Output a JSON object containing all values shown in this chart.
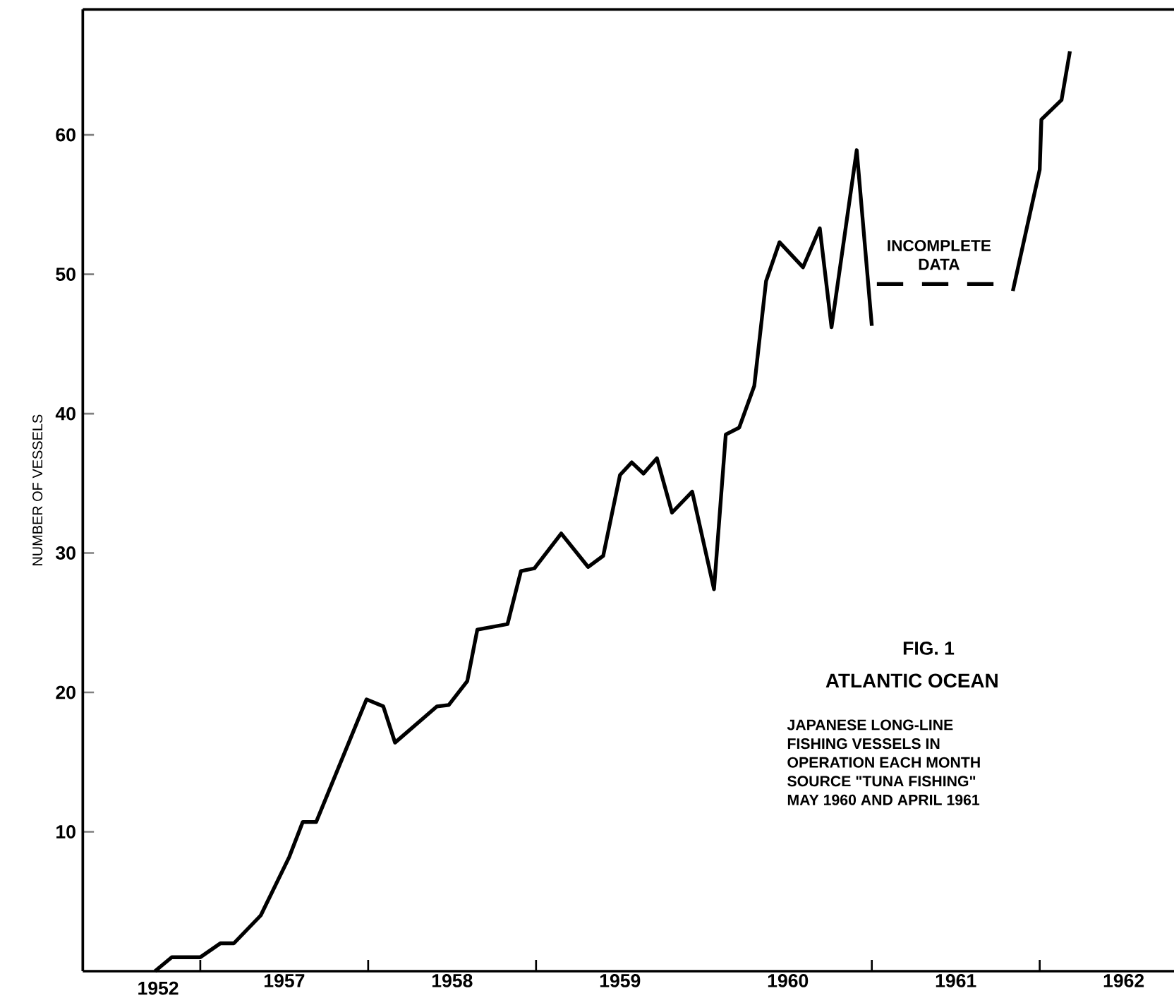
{
  "chart_data": {
    "type": "line",
    "title": "FIG. 1",
    "subtitle": "ATLANTIC OCEAN",
    "ylabel": "NUMBER OF VESSELS",
    "annotations": [
      {
        "text": "INCOMPLETE DATA",
        "x": 1960.9,
        "y": 49.3
      },
      "1952",
      "JAPANESE LONG-LINE",
      "FISHING VESSELS IN",
      "OPERATION EACH MONTH",
      "SOURCE \"TUNA FISHING\"",
      "MAY 1960 AND APRIL 1961"
    ],
    "series": [
      {
        "color": "#000000",
        "line_style": "solid",
        "x": [
          1956.23,
          1956.33,
          1956.5,
          1956.62,
          1956.7,
          1956.86,
          1957.03,
          1957.11,
          1957.19,
          1957.49,
          1957.59,
          1957.66,
          1957.91,
          1957.98,
          1958.09,
          1958.15,
          1958.33,
          1958.41,
          1958.49,
          1958.65,
          1958.81,
          1958.9,
          1959.0,
          1959.07,
          1959.14,
          1959.22,
          1959.31,
          1959.43,
          1959.56,
          1959.63,
          1959.71,
          1959.8,
          1959.87,
          1959.95,
          1960.09,
          1960.19,
          1960.26,
          1960.41,
          1960.5,
          1960.9,
          1961.34,
          1961.5,
          1961.51,
          1961.63,
          1961.68
        ],
        "values": [
          0,
          1,
          1,
          2,
          2,
          4,
          8.2,
          10.7,
          10.7,
          19.5,
          19,
          16.4,
          19,
          19.1,
          20.8,
          24.5,
          24.9,
          28.7,
          28.9,
          31.4,
          29,
          29.8,
          35.6,
          36.5,
          35.7,
          36.8,
          32.9,
          34.4,
          27.4,
          38.5,
          39,
          42,
          49.5,
          52.3,
          50.5,
          53.3,
          46.2,
          58.9,
          46.3,
          null,
          48.8,
          57.5,
          61.1,
          62.5,
          66
        ]
      },
      {
        "color": "#000000",
        "line_style": "dashed",
        "x": [
          1960.53,
          1961.25
        ],
        "values": [
          49.3,
          49.3
        ]
      }
    ],
    "xlim": [
      1955.8,
      1962.3
    ],
    "xticks": [
      1957,
      1958,
      1959,
      1960,
      1961,
      1962,
      {
        "value": 1956.5,
        "label": null
      },
      {
        "value": 1957.5,
        "label": null
      },
      {
        "value": 1958.5,
        "label": null
      },
      {
        "value": 1960.5,
        "label": null
      },
      {
        "value": 1961.5,
        "label": null
      }
    ],
    "ylim": [
      0,
      69
    ],
    "yticks": [
      10,
      20,
      30,
      40,
      50,
      60
    ]
  }
}
